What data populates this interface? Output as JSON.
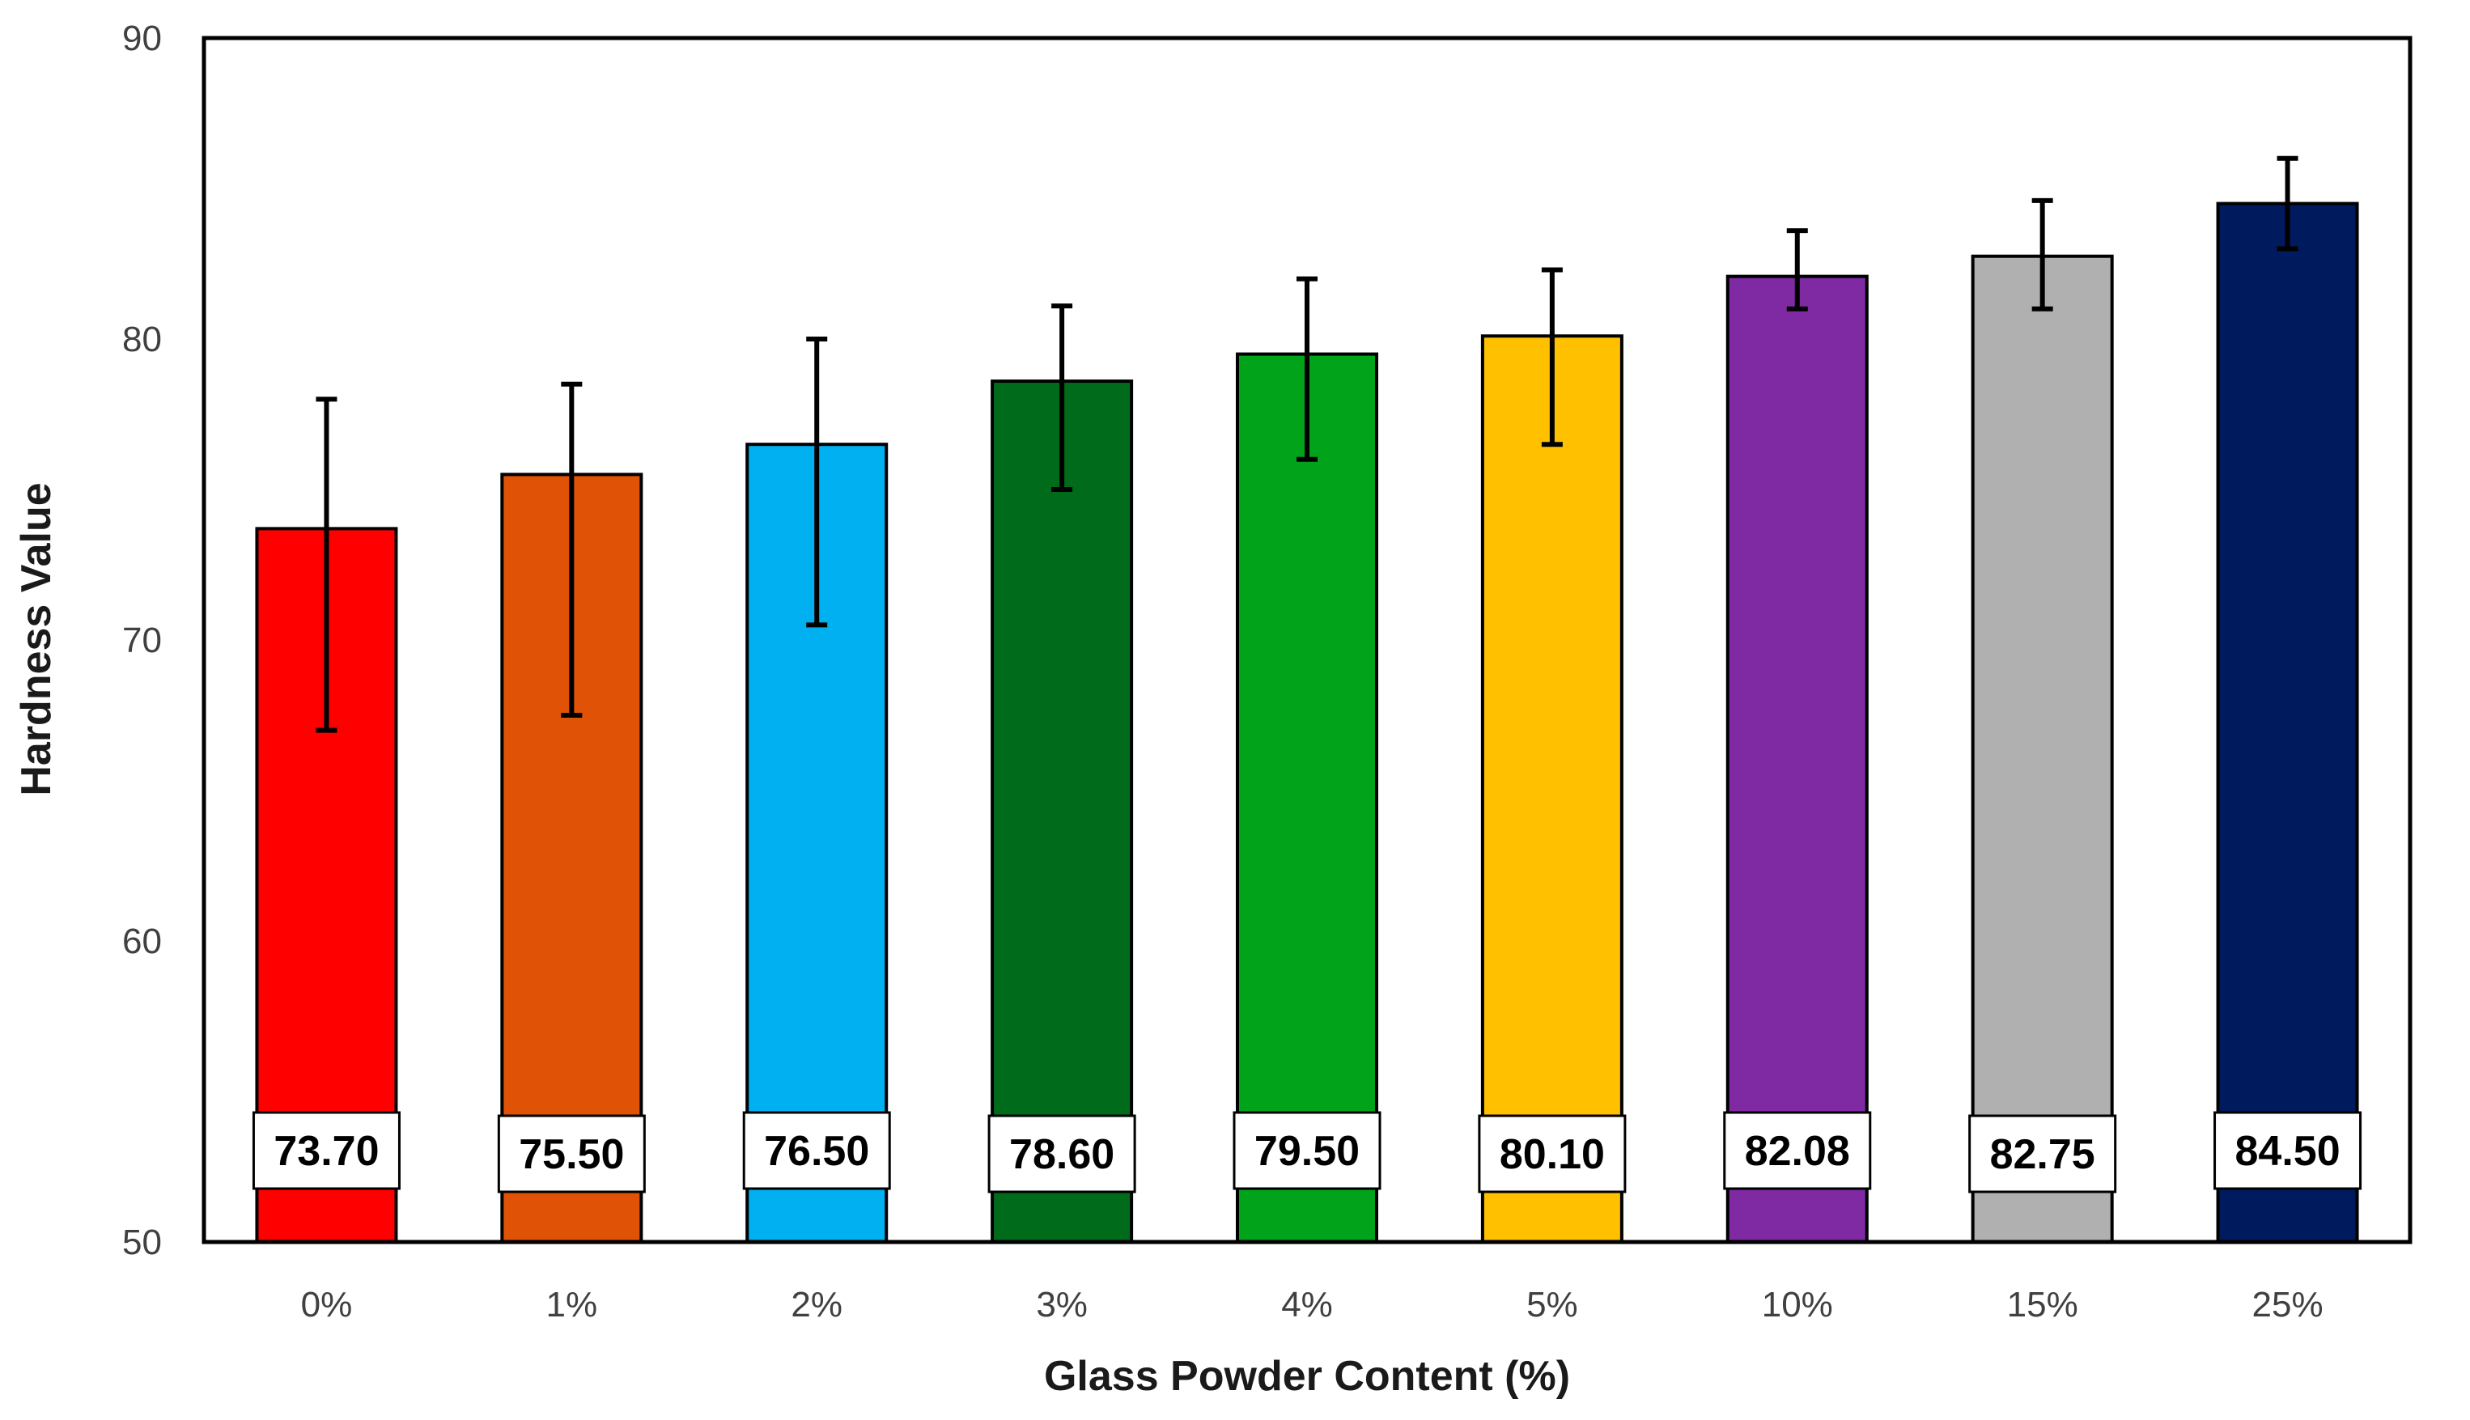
{
  "chart_data": {
    "type": "bar",
    "title": "",
    "xlabel": "Glass Powder Content (%)",
    "ylabel": "Hardness Value",
    "ylim": [
      50,
      90
    ],
    "yticks": [
      50,
      60,
      70,
      80,
      90
    ],
    "grid": false,
    "legend": "none",
    "categories": [
      "0%",
      "1%",
      "2%",
      "3%",
      "4%",
      "5%",
      "10%",
      "15%",
      "25%"
    ],
    "values": [
      73.7,
      75.5,
      76.5,
      78.6,
      79.5,
      80.1,
      82.08,
      82.75,
      84.5
    ],
    "value_labels": [
      "73.70",
      "75.50",
      "76.50",
      "78.60",
      "79.50",
      "80.10",
      "82.08",
      "82.75",
      "84.50"
    ],
    "error_low": [
      67.0,
      67.5,
      70.5,
      75.0,
      76.0,
      76.5,
      81.0,
      81.0,
      83.0
    ],
    "error_high": [
      78.0,
      78.5,
      80.0,
      81.1,
      82.0,
      82.3,
      83.6,
      84.6,
      86.0
    ],
    "colors": [
      "#ff0000",
      "#e05206",
      "#00b0f0",
      "#006b1a",
      "#00a31a",
      "#ffc000",
      "#7f2aa3",
      "#b0b0b0",
      "#001a5e"
    ]
  }
}
